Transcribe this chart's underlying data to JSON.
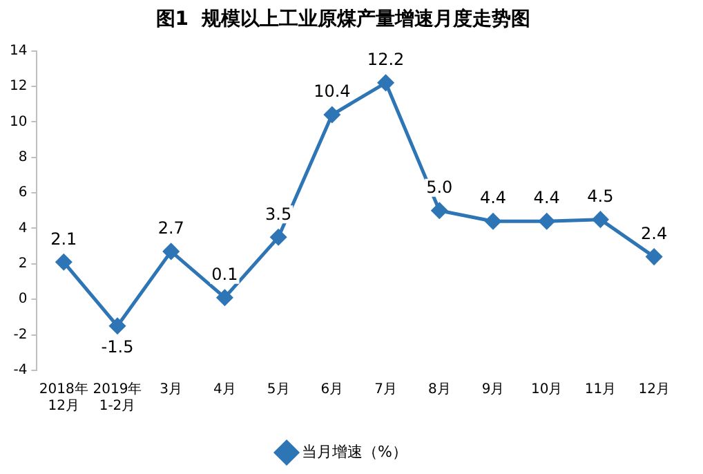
{
  "chart_data": {
    "type": "line",
    "title": "图1  规模以上工业原煤产量增速月度走势图",
    "categories": [
      "2018年\n12月",
      "2019年\n1-2月",
      "3月",
      "4月",
      "5月",
      "6月",
      "7月",
      "8月",
      "9月",
      "10月",
      "11月",
      "12月"
    ],
    "series": [
      {
        "name": "当月增速（%）",
        "color": "#2e75b6",
        "values": [
          2.1,
          -1.5,
          2.7,
          0.1,
          3.5,
          10.4,
          12.2,
          5.0,
          4.4,
          4.4,
          4.5,
          2.4
        ],
        "value_labels": [
          "2.1",
          "-1.5",
          "2.7",
          "0.1",
          "3.5",
          "10.4",
          "12.2",
          "5.0",
          "4.4",
          "4.4",
          "4.5",
          "2.4"
        ]
      }
    ],
    "ylim": [
      -4,
      14
    ],
    "yticks": [
      -4,
      -2,
      0,
      2,
      4,
      6,
      8,
      10,
      12,
      14
    ],
    "marker": "diamond",
    "legend": "bottom",
    "grid": false
  }
}
